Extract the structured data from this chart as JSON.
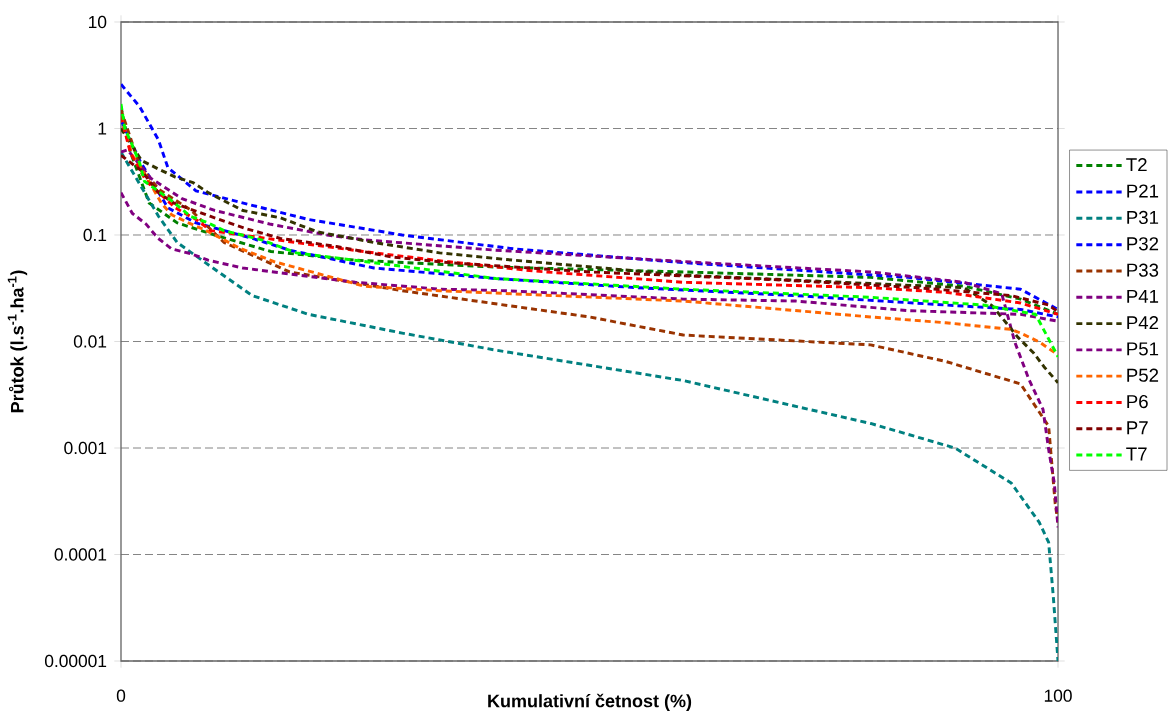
{
  "chart_data": {
    "type": "line",
    "xlabel": "Kumulativní četnost (%)",
    "ylabel": "Průtok (l.s$^{-1}$.ha$^{-1}$)",
    "xlim": [
      0,
      100
    ],
    "xticks": [
      0,
      100
    ],
    "ylim": [
      1e-05,
      10
    ],
    "log": true,
    "yticks": [
      {
        "value": 1e-05,
        "label": "0.00001"
      },
      {
        "value": 0.0001,
        "label": "0.0001"
      },
      {
        "value": 0.001,
        "label": "0.001"
      },
      {
        "value": 0.01,
        "label": "0.01"
      },
      {
        "value": 0.1,
        "label": "0.1"
      },
      {
        "value": 1,
        "label": "1"
      },
      {
        "value": 10,
        "label": "10"
      }
    ],
    "grid": "y",
    "legend": "right",
    "line_style": "dashed",
    "series": [
      {
        "name": "T2",
        "color": "#008000",
        "x": [
          0,
          1,
          3,
          6,
          10,
          16,
          25,
          40,
          60,
          80,
          90,
          96,
          100
        ],
        "values": [
          1.6,
          0.6,
          0.2,
          0.13,
          0.1,
          0.07,
          0.058,
          0.05,
          0.045,
          0.04,
          0.033,
          0.025,
          0.018
        ]
      },
      {
        "name": "P21",
        "color": "#0000ff",
        "x": [
          0,
          2,
          4,
          5,
          8,
          14,
          20,
          30,
          42,
          60,
          84,
          96,
          100
        ],
        "values": [
          2.6,
          1.6,
          0.78,
          0.43,
          0.26,
          0.19,
          0.14,
          0.1,
          0.074,
          0.055,
          0.04,
          0.031,
          0.02
        ]
      },
      {
        "name": "P31",
        "color": "#008080",
        "x": [
          0,
          2,
          4,
          6,
          9,
          14,
          20,
          30,
          40,
          60,
          80,
          89,
          95,
          98,
          99,
          99.5,
          100
        ],
        "values": [
          0.6,
          0.3,
          0.15,
          0.085,
          0.055,
          0.027,
          0.018,
          0.012,
          0.0083,
          0.0043,
          0.0017,
          0.001,
          0.00047,
          0.0002,
          0.00013,
          4e-05,
          1e-05
        ]
      },
      {
        "name": "P32",
        "color": "#0000ff",
        "x": [
          0,
          2,
          5,
          8,
          14,
          18,
          27,
          40,
          55,
          72,
          88,
          96,
          100
        ],
        "values": [
          1.2,
          0.5,
          0.18,
          0.13,
          0.093,
          0.072,
          0.049,
          0.039,
          0.032,
          0.027,
          0.022,
          0.02,
          0.017
        ]
      },
      {
        "name": "P33",
        "color": "#993300",
        "x": [
          0,
          2,
          4,
          7.5,
          11,
          18,
          30,
          50,
          60,
          80,
          88,
          96,
          99,
          99.7,
          100
        ],
        "values": [
          1.5,
          0.45,
          0.27,
          0.17,
          0.085,
          0.045,
          0.03,
          0.017,
          0.0115,
          0.0093,
          0.0065,
          0.004,
          0.0016,
          0.0003,
          0.0002
        ]
      },
      {
        "name": "P41",
        "color": "#800080",
        "x": [
          0,
          0.7,
          3.2,
          6.5,
          10,
          16,
          22,
          26,
          40,
          62,
          80,
          90,
          94,
          95.4,
          96.9,
          98.4,
          99,
          99.6,
          100
        ],
        "values": [
          0.6,
          0.63,
          0.34,
          0.22,
          0.17,
          0.126,
          0.1,
          0.09,
          0.072,
          0.055,
          0.045,
          0.036,
          0.028,
          0.0098,
          0.0044,
          0.0023,
          0.00097,
          0.00047,
          0.00018
        ]
      },
      {
        "name": "P42",
        "color": "#333300",
        "x": [
          0,
          2.2,
          3.9,
          5.8,
          7.7,
          9.3,
          13,
          17,
          21,
          27,
          34,
          41,
          60,
          80,
          90,
          93,
          95.7,
          97.4,
          98.5,
          100
        ],
        "values": [
          1.0,
          0.5,
          0.42,
          0.35,
          0.31,
          0.25,
          0.17,
          0.145,
          0.107,
          0.085,
          0.068,
          0.059,
          0.042,
          0.035,
          0.032,
          0.0216,
          0.011,
          0.0078,
          0.0058,
          0.0041
        ]
      },
      {
        "name": "P51",
        "color": "#800080",
        "x": [
          0,
          1.2,
          2.7,
          3.9,
          5.4,
          7.4,
          9.3,
          13,
          19,
          25,
          34,
          41,
          60,
          72,
          84,
          96,
          100
        ],
        "values": [
          0.25,
          0.16,
          0.126,
          0.094,
          0.074,
          0.067,
          0.058,
          0.049,
          0.042,
          0.036,
          0.031,
          0.03,
          0.025,
          0.024,
          0.0195,
          0.018,
          0.0155
        ]
      },
      {
        "name": "P52",
        "color": "#ff6600",
        "x": [
          0,
          1.2,
          2.5,
          4.3,
          5.4,
          7.2,
          9.1,
          12.7,
          16.4,
          26,
          34,
          40,
          60,
          80,
          88,
          95,
          96,
          98,
          100
        ],
        "values": [
          1.3,
          0.56,
          0.38,
          0.2,
          0.155,
          0.13,
          0.11,
          0.075,
          0.056,
          0.033,
          0.03,
          0.0285,
          0.024,
          0.017,
          0.015,
          0.013,
          0.012,
          0.0099,
          0.0075
        ]
      },
      {
        "name": "P6",
        "color": "#ff0000",
        "x": [
          0,
          1,
          2.7,
          5.8,
          8,
          9.6,
          19.5,
          27,
          35,
          44,
          60,
          80,
          88,
          96,
          100
        ],
        "values": [
          1.3,
          0.59,
          0.32,
          0.18,
          0.14,
          0.11,
          0.083,
          0.068,
          0.056,
          0.046,
          0.036,
          0.032,
          0.029,
          0.023,
          0.018
        ]
      },
      {
        "name": "P7",
        "color": "#800000",
        "x": [
          0,
          2.2,
          4,
          5.6,
          9.5,
          13.3,
          17,
          23,
          29,
          35,
          50,
          70,
          85,
          95,
          99,
          100
        ],
        "values": [
          0.56,
          0.4,
          0.25,
          0.2,
          0.15,
          0.115,
          0.093,
          0.078,
          0.062,
          0.055,
          0.045,
          0.038,
          0.032,
          0.027,
          0.022,
          0.019
        ]
      },
      {
        "name": "T7",
        "color": "#00ff00",
        "x": [
          0,
          0.4,
          1.2,
          2,
          2.5,
          5.4,
          7.4,
          9.3,
          11,
          15,
          18.7,
          27,
          40,
          60,
          80,
          92,
          97.6,
          100
        ],
        "values": [
          1.7,
          1.0,
          0.7,
          0.47,
          0.32,
          0.21,
          0.15,
          0.13,
          0.11,
          0.09,
          0.068,
          0.055,
          0.039,
          0.031,
          0.026,
          0.022,
          0.018,
          0.0072
        ]
      }
    ]
  }
}
